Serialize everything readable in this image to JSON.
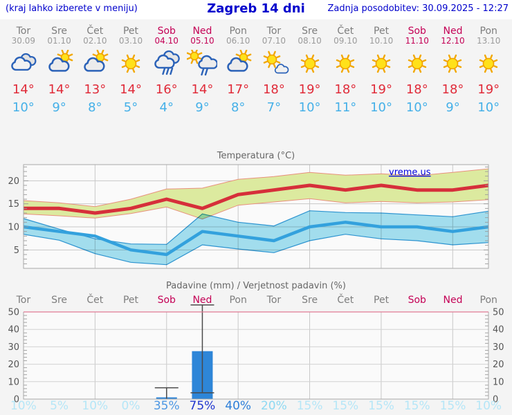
{
  "header": {
    "left": "(kraj lahko izberete v meniju)",
    "title": "Zagreb 14 dni",
    "right": "Zadnja posodobitev: 30.09.2025 - 12:27"
  },
  "watermark": "vreme.us",
  "colors": {
    "link_blue": "#0000cc",
    "weekend": "#c40055",
    "day_gray": "#7d7d7d",
    "tmax_red": "#e02b39",
    "tmin_blue": "#45b0e8",
    "max_line": "#d62f3a",
    "max_band_fill": "#dcea9f",
    "max_band_edge": "#e8907c",
    "min_line": "#33a1dd",
    "min_band_fill": "#a5e2f2",
    "min_band_edge": "#2d96d4",
    "bar_blue": "#2e86d8",
    "whisker": "#4a4a4a",
    "precip_top_border": "#e07a95",
    "prob_light": "#b5e6f7"
  },
  "days": [
    {
      "name": "Tor",
      "date": "30.09",
      "weekend": false,
      "icon": "cloudy",
      "tmax": "14°",
      "tmin": "10°",
      "prob": "10%",
      "prob_color": "#b5e6f7"
    },
    {
      "name": "Sre",
      "date": "01.10",
      "weekend": false,
      "icon": "sun-cloud",
      "tmax": "14°",
      "tmin": "9°",
      "prob": "5%",
      "prob_color": "#b5e6f7"
    },
    {
      "name": "Čet",
      "date": "02.10",
      "weekend": false,
      "icon": "sun-cloud",
      "tmax": "13°",
      "tmin": "8°",
      "prob": "10%",
      "prob_color": "#b5e6f7"
    },
    {
      "name": "Pet",
      "date": "03.10",
      "weekend": false,
      "icon": "sunny",
      "tmax": "14°",
      "tmin": "5°",
      "prob": "0%",
      "prob_color": "#b5e6f7"
    },
    {
      "name": "Sob",
      "date": "04.10",
      "weekend": true,
      "icon": "rain",
      "tmax": "16°",
      "tmin": "4°",
      "prob": "35%",
      "prob_color": "#4d97e3"
    },
    {
      "name": "Ned",
      "date": "05.10",
      "weekend": true,
      "icon": "sun-rain",
      "tmax": "14°",
      "tmin": "9°",
      "prob": "75%",
      "prob_color": "#2036cf"
    },
    {
      "name": "Pon",
      "date": "06.10",
      "weekend": false,
      "icon": "sun-cloud",
      "tmax": "17°",
      "tmin": "8°",
      "prob": "40%",
      "prob_color": "#2e7fd9"
    },
    {
      "name": "Tor",
      "date": "07.10",
      "weekend": false,
      "icon": "sun-small-cloud",
      "tmax": "18°",
      "tmin": "7°",
      "prob": "20%",
      "prob_color": "#8ed9f2"
    },
    {
      "name": "Sre",
      "date": "08.10",
      "weekend": false,
      "icon": "sunny",
      "tmax": "19°",
      "tmin": "10°",
      "prob": "15%",
      "prob_color": "#b5e6f7"
    },
    {
      "name": "Čet",
      "date": "09.10",
      "weekend": false,
      "icon": "sunny",
      "tmax": "18°",
      "tmin": "11°",
      "prob": "15%",
      "prob_color": "#b5e6f7"
    },
    {
      "name": "Pet",
      "date": "10.10",
      "weekend": false,
      "icon": "sunny",
      "tmax": "19°",
      "tmin": "10°",
      "prob": "15%",
      "prob_color": "#b5e6f7"
    },
    {
      "name": "Sob",
      "date": "11.10",
      "weekend": true,
      "icon": "sunny",
      "tmax": "18°",
      "tmin": "10°",
      "prob": "15%",
      "prob_color": "#b5e6f7"
    },
    {
      "name": "Ned",
      "date": "12.10",
      "weekend": true,
      "icon": "sunny",
      "tmax": "18°",
      "tmin": "9°",
      "prob": "15%",
      "prob_color": "#b5e6f7"
    },
    {
      "name": "Pon",
      "date": "13.10",
      "weekend": false,
      "icon": "sunny",
      "tmax": "19°",
      "tmin": "10°",
      "prob": "10%",
      "prob_color": "#b5e6f7"
    }
  ],
  "chart_data": [
    {
      "type": "line",
      "title": "Temperatura (°C)",
      "categories": [
        "Tor",
        "Sre",
        "Čet",
        "Pet",
        "Sob",
        "Ned",
        "Pon",
        "Tor",
        "Sre",
        "Čet",
        "Pet",
        "Sob",
        "Ned",
        "Pon"
      ],
      "series": [
        {
          "name": "max",
          "values": [
            14,
            14,
            13,
            14,
            16,
            14,
            17,
            18,
            19,
            18,
            19,
            18,
            18,
            19
          ]
        },
        {
          "name": "max_upper",
          "values": [
            15.7,
            15.2,
            14.4,
            16.0,
            18.2,
            18.4,
            20.3,
            20.9,
            21.8,
            21.2,
            21.5,
            21.1,
            21.8,
            22.6
          ]
        },
        {
          "name": "max_lower",
          "values": [
            12.8,
            12.4,
            11.9,
            12.9,
            14.3,
            11.7,
            14.7,
            15.4,
            16.1,
            15.2,
            15.5,
            15.2,
            15.4,
            15.9
          ]
        },
        {
          "name": "min",
          "values": [
            10,
            9,
            8,
            5,
            4,
            9,
            8,
            7,
            10,
            11,
            10,
            10,
            9,
            10
          ]
        },
        {
          "name": "min_upper",
          "values": [
            11.8,
            9.5,
            7.4,
            6.3,
            6.2,
            12.8,
            11.0,
            10.2,
            13.5,
            13.1,
            13.0,
            12.6,
            12.2,
            13.4
          ]
        },
        {
          "name": "min_lower",
          "values": [
            8.4,
            7.1,
            4.2,
            2.3,
            1.8,
            6.1,
            5.2,
            4.4,
            7.0,
            8.4,
            7.4,
            7.0,
            6.1,
            6.6
          ]
        }
      ],
      "ylim": [
        1,
        23.5
      ],
      "yticks": [
        5,
        10,
        15,
        20
      ],
      "grid": true,
      "watermark": "vreme.us"
    },
    {
      "type": "bar",
      "title": "Padavine (mm) / Verjetnost padavin (%)",
      "categories": [
        "Tor",
        "Sre",
        "Čet",
        "Pet",
        "Sob",
        "Ned",
        "Pon",
        "Tor",
        "Sre",
        "Čet",
        "Pet",
        "Sob",
        "Ned",
        "Pon"
      ],
      "values": [
        0,
        0,
        0,
        0,
        1,
        27.5,
        0,
        0,
        0,
        0,
        0,
        0,
        0,
        0
      ],
      "whisker_high": [
        null,
        null,
        null,
        null,
        6.5,
        54,
        null,
        null,
        null,
        null,
        null,
        null,
        null,
        null
      ],
      "whisker_low": [
        null,
        null,
        null,
        null,
        null,
        3.6,
        null,
        null,
        null,
        null,
        null,
        null,
        null,
        null
      ],
      "probabilities": [
        "10%",
        "5%",
        "10%",
        "0%",
        "35%",
        "75%",
        "40%",
        "20%",
        "15%",
        "15%",
        "15%",
        "15%",
        "15%",
        "10%"
      ],
      "ylim": [
        0,
        50
      ],
      "yticks": [
        0,
        10,
        20,
        30,
        40,
        50
      ],
      "grid": true
    }
  ]
}
